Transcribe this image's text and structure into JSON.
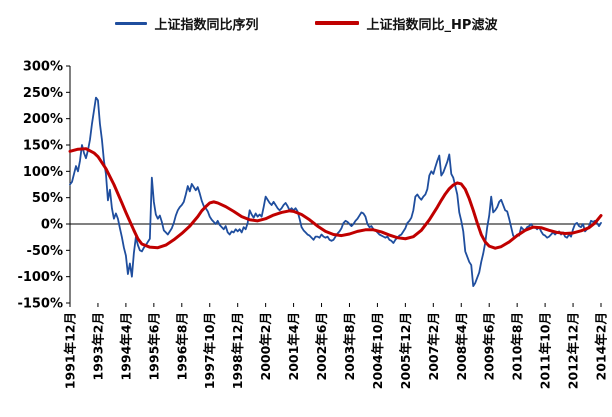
{
  "legend": {
    "items": [
      {
        "label": "上证指数同比序列",
        "color": "#1F4E9E"
      },
      {
        "label": "上证指数同比_HP滤波",
        "color": "#C00000"
      }
    ]
  },
  "chart_data": {
    "type": "line",
    "title": "",
    "xlabel": "",
    "ylabel": "",
    "ylim": [
      -150,
      300
    ],
    "grid": false,
    "legend_position": "top-center",
    "x_unit": "months since 1991-12",
    "x_max_index": 266,
    "x_tick_step": 14,
    "x_tick_labels": [
      "1991年12月",
      "1993年2月",
      "1994年4月",
      "1995年6月",
      "1996年8月",
      "1997年10月",
      "1998年12月",
      "2000年2月",
      "2001年4月",
      "2002年6月",
      "2003年8月",
      "2004年10月",
      "2005年12月",
      "2007年2月",
      "2008年4月",
      "2009年6月",
      "2010年8月",
      "2011年10月",
      "2012年12月",
      "2014年2月"
    ],
    "y_tick_labels": [
      "300%",
      "250%",
      "200%",
      "150%",
      "100%",
      "50%",
      "0%",
      "-50%",
      "-100%",
      "-150%"
    ],
    "y_tick_values": [
      300,
      250,
      200,
      150,
      100,
      50,
      0,
      -50,
      -100,
      -150
    ],
    "series": [
      {
        "name": "上证指数同比序列",
        "color": "#1F4E9E",
        "width": 1.8,
        "start": "1991-12",
        "frequency": "monthly",
        "monthly_values_pct": [
          75,
          80,
          95,
          110,
          100,
          120,
          150,
          135,
          125,
          140,
          160,
          190,
          215,
          240,
          235,
          190,
          160,
          120,
          95,
          45,
          65,
          30,
          10,
          20,
          10,
          -8,
          -25,
          -45,
          -60,
          -95,
          -75,
          -100,
          -55,
          -25,
          -40,
          -50,
          -52,
          -45,
          -40,
          -34,
          -28,
          88,
          42,
          18,
          10,
          16,
          4,
          -12,
          -16,
          -20,
          -14,
          -8,
          2,
          16,
          26,
          32,
          36,
          42,
          56,
          72,
          62,
          76,
          70,
          64,
          70,
          58,
          44,
          34,
          30,
          24,
          14,
          8,
          4,
          0,
          6,
          -2,
          -6,
          -10,
          -4,
          -16,
          -20,
          -14,
          -16,
          -10,
          -14,
          -10,
          -16,
          -6,
          -10,
          2,
          26,
          18,
          12,
          20,
          14,
          18,
          14,
          32,
          52,
          46,
          40,
          36,
          42,
          36,
          30,
          26,
          30,
          36,
          40,
          34,
          26,
          30,
          26,
          30,
          24,
          10,
          -6,
          -12,
          -16,
          -20,
          -22,
          -26,
          -30,
          -24,
          -24,
          -26,
          -20,
          -24,
          -26,
          -24,
          -30,
          -32,
          -30,
          -24,
          -18,
          -14,
          -8,
          2,
          6,
          4,
          0,
          -4,
          0,
          6,
          10,
          16,
          22,
          20,
          14,
          0,
          -6,
          -4,
          -10,
          -12,
          -16,
          -20,
          -22,
          -24,
          -26,
          -24,
          -30,
          -32,
          -36,
          -30,
          -26,
          -22,
          -20,
          -14,
          -8,
          2,
          6,
          12,
          26,
          52,
          56,
          50,
          46,
          52,
          56,
          66,
          92,
          100,
          95,
          108,
          120,
          130,
          92,
          98,
          108,
          118,
          132,
          95,
          88,
          72,
          56,
          22,
          6,
          -14,
          -52,
          -62,
          -72,
          -78,
          -118,
          -112,
          -102,
          -92,
          -72,
          -56,
          -36,
          -6,
          16,
          52,
          22,
          26,
          32,
          42,
          46,
          36,
          26,
          24,
          10,
          -6,
          -22,
          -26,
          -20,
          -22,
          -6,
          -10,
          -12,
          -6,
          -4,
          0,
          -6,
          -6,
          -10,
          -6,
          -14,
          -20,
          -22,
          -26,
          -24,
          -20,
          -16,
          -20,
          -16,
          -14,
          -20,
          -16,
          -24,
          -26,
          -20,
          -24,
          -10,
          0,
          2,
          -4,
          -6,
          0,
          -14,
          -10,
          -4,
          6,
          4,
          6,
          2,
          -4,
          2
        ]
      },
      {
        "name": "上证指数同比_HP滤波",
        "color": "#C00000",
        "width": 3,
        "anchors_month_index_pct": [
          [
            0,
            138
          ],
          [
            4,
            142
          ],
          [
            8,
            143
          ],
          [
            12,
            135
          ],
          [
            14,
            128
          ],
          [
            18,
            105
          ],
          [
            22,
            75
          ],
          [
            26,
            40
          ],
          [
            28,
            22
          ],
          [
            30,
            5
          ],
          [
            32,
            -12
          ],
          [
            34,
            -28
          ],
          [
            36,
            -38
          ],
          [
            40,
            -44
          ],
          [
            44,
            -45
          ],
          [
            48,
            -40
          ],
          [
            52,
            -30
          ],
          [
            56,
            -18
          ],
          [
            60,
            -4
          ],
          [
            64,
            14
          ],
          [
            66,
            25
          ],
          [
            68,
            33
          ],
          [
            70,
            40
          ],
          [
            72,
            42
          ],
          [
            74,
            40
          ],
          [
            78,
            33
          ],
          [
            82,
            24
          ],
          [
            86,
            14
          ],
          [
            90,
            8
          ],
          [
            94,
            6
          ],
          [
            98,
            10
          ],
          [
            102,
            17
          ],
          [
            106,
            22
          ],
          [
            110,
            25
          ],
          [
            112,
            24
          ],
          [
            116,
            18
          ],
          [
            120,
            8
          ],
          [
            124,
            -4
          ],
          [
            128,
            -14
          ],
          [
            132,
            -20
          ],
          [
            136,
            -22
          ],
          [
            140,
            -19
          ],
          [
            144,
            -14
          ],
          [
            148,
            -11
          ],
          [
            152,
            -11
          ],
          [
            156,
            -15
          ],
          [
            160,
            -21
          ],
          [
            164,
            -26
          ],
          [
            168,
            -28
          ],
          [
            172,
            -24
          ],
          [
            176,
            -12
          ],
          [
            180,
            8
          ],
          [
            184,
            32
          ],
          [
            186,
            45
          ],
          [
            188,
            57
          ],
          [
            190,
            67
          ],
          [
            192,
            74
          ],
          [
            194,
            78
          ],
          [
            196,
            76
          ],
          [
            198,
            66
          ],
          [
            200,
            48
          ],
          [
            202,
            26
          ],
          [
            204,
            2
          ],
          [
            206,
            -20
          ],
          [
            208,
            -34
          ],
          [
            210,
            -42
          ],
          [
            213,
            -46
          ],
          [
            216,
            -43
          ],
          [
            220,
            -34
          ],
          [
            224,
            -22
          ],
          [
            228,
            -12
          ],
          [
            232,
            -6
          ],
          [
            236,
            -7
          ],
          [
            240,
            -12
          ],
          [
            244,
            -16
          ],
          [
            248,
            -18
          ],
          [
            252,
            -17
          ],
          [
            256,
            -13
          ],
          [
            260,
            -7
          ],
          [
            263,
            2
          ],
          [
            266,
            16
          ]
        ]
      }
    ]
  }
}
